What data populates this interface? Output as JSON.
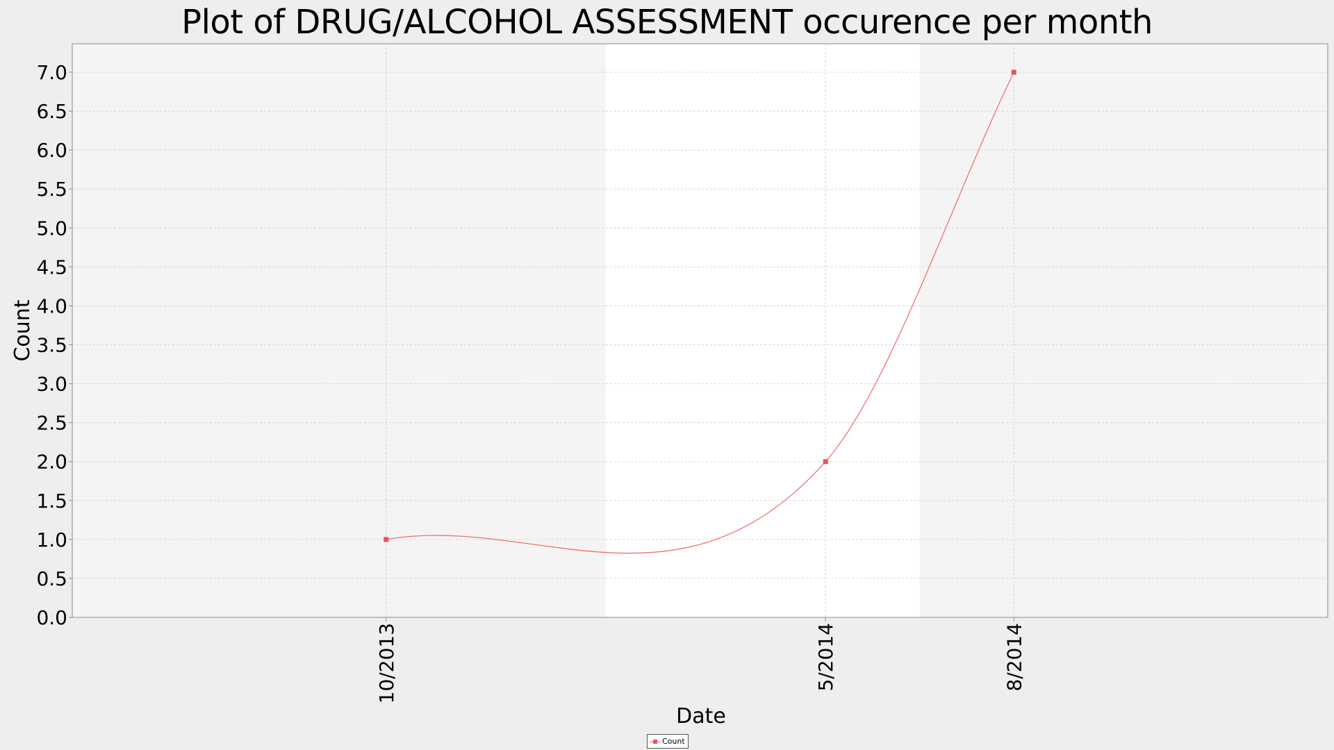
{
  "chart_data": {
    "type": "line",
    "title": "Plot of DRUG/ALCOHOL ASSESSMENT occurence per month",
    "xlabel": "Date",
    "ylabel": "Count",
    "ylim": [
      0,
      7.0
    ],
    "yticks": [
      "0.0",
      "0.5",
      "1.0",
      "1.5",
      "2.0",
      "2.5",
      "3.0",
      "3.5",
      "4.0",
      "4.5",
      "5.0",
      "5.5",
      "6.0",
      "6.5",
      "7.0"
    ],
    "xlim": [
      "2013-05",
      "2015-01"
    ],
    "xticks": [
      {
        "label": "10/2013",
        "date": "2013-10"
      },
      {
        "label": "5/2014",
        "date": "2014-05"
      },
      {
        "label": "8/2014",
        "date": "2014-08"
      }
    ],
    "series": [
      {
        "name": "Count",
        "color": "#e85555",
        "points": [
          {
            "date": "2013-10",
            "value": 1
          },
          {
            "date": "2014-05",
            "value": 2
          },
          {
            "date": "2014-08",
            "value": 7
          }
        ]
      }
    ],
    "grid": true,
    "legend": "bottom-center",
    "plot_background": "#f4f4f4",
    "band_color": "#ffffff"
  }
}
